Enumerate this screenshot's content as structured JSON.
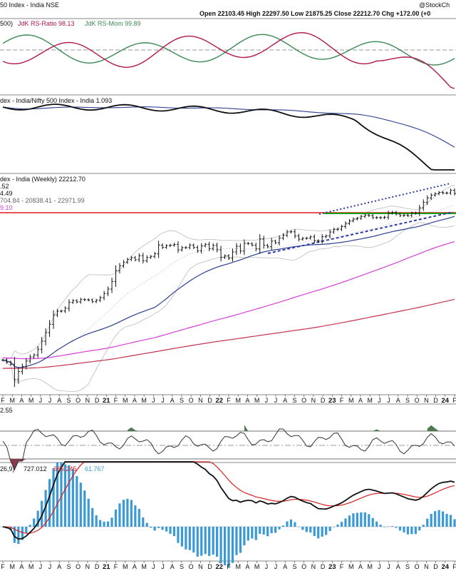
{
  "header": {
    "title": "50 Index - India NSE",
    "brand": "@StockCh",
    "ohlc": "Open 22103.45  High 22297.50  Low 21875.25  Close 22212.70  Chg +172.00 (+0"
  },
  "panels": {
    "rrg": {
      "legend_prefix": "500)",
      "ratio_label": "JdK RS-Ratio 98.13",
      "mom_label": "JdK RS-Mom 99.89"
    },
    "relative": {
      "legend": "dex - India/Nifty 500 Index - India 1.093"
    },
    "price": {
      "legend": "dex - India (Weekly) 22212.70",
      "ma_labels": [
        ".52",
        "4.49",
        "704.84 - 20838.41 - 22971.99",
        "9.10"
      ]
    },
    "oscillator": {
      "legend": "2.55"
    },
    "macd": {
      "legend_prefix": "26,9) ",
      "macd_value": "727.012",
      "signal_value": "665.245",
      "hist_value": "61.767"
    }
  },
  "x_axis": {
    "ticks": [
      {
        "label": "F",
        "bold": false
      },
      {
        "label": "M",
        "bold": false
      },
      {
        "label": "A",
        "bold": false
      },
      {
        "label": "M",
        "bold": false
      },
      {
        "label": "J",
        "bold": false
      },
      {
        "label": "J",
        "bold": false
      },
      {
        "label": "A",
        "bold": false
      },
      {
        "label": "S",
        "bold": false
      },
      {
        "label": "O",
        "bold": false
      },
      {
        "label": "N",
        "bold": false
      },
      {
        "label": "D",
        "bold": false
      },
      {
        "label": "21",
        "bold": true
      },
      {
        "label": "F",
        "bold": false
      },
      {
        "label": "M",
        "bold": false
      },
      {
        "label": "A",
        "bold": false
      },
      {
        "label": "M",
        "bold": false
      },
      {
        "label": "J",
        "bold": false
      },
      {
        "label": "J",
        "bold": false
      },
      {
        "label": "A",
        "bold": false
      },
      {
        "label": "S",
        "bold": false
      },
      {
        "label": "O",
        "bold": false
      },
      {
        "label": "N",
        "bold": false
      },
      {
        "label": "D",
        "bold": false
      },
      {
        "label": "22",
        "bold": true
      },
      {
        "label": "F",
        "bold": false
      },
      {
        "label": "M",
        "bold": false
      },
      {
        "label": "A",
        "bold": false
      },
      {
        "label": "M",
        "bold": false
      },
      {
        "label": "J",
        "bold": false
      },
      {
        "label": "J",
        "bold": false
      },
      {
        "label": "A",
        "bold": false
      },
      {
        "label": "S",
        "bold": false
      },
      {
        "label": "O",
        "bold": false
      },
      {
        "label": "N",
        "bold": false
      },
      {
        "label": "D",
        "bold": false
      },
      {
        "label": "23",
        "bold": true
      },
      {
        "label": "F",
        "bold": false
      },
      {
        "label": "M",
        "bold": false
      },
      {
        "label": "A",
        "bold": false
      },
      {
        "label": "M",
        "bold": false
      },
      {
        "label": "J",
        "bold": false
      },
      {
        "label": "J",
        "bold": false
      },
      {
        "label": "A",
        "bold": false
      },
      {
        "label": "S",
        "bold": false
      },
      {
        "label": "O",
        "bold": false
      },
      {
        "label": "N",
        "bold": false
      },
      {
        "label": "D",
        "bold": false
      },
      {
        "label": "24",
        "bold": true
      },
      {
        "label": "F",
        "bold": false
      }
    ]
  },
  "colors": {
    "ratio": "#b2174a",
    "momentum": "#3a8a52",
    "price": "#111111",
    "ma_blue": "#2a3f8f",
    "ma_magenta": "#d63fd6",
    "ma_red": "#c4334f",
    "bollinger": "#bbbbbb",
    "resistance": "#e01b1b",
    "support": "#14a014",
    "trendline": "#2f3aa6",
    "macd": "#111111",
    "signal": "#d82020",
    "histogram": "#3b9ad4",
    "osc_pos": "#4d7a52",
    "osc_neg": "#8a3a4a"
  },
  "chart_data": {
    "type": "line",
    "series": [
      {
        "name": "Weekly close",
        "values": [
          17050,
          16620,
          16210,
          13050,
          14700,
          15750,
          16850,
          17680,
          18090,
          19250,
          20900,
          22630,
          24330,
          26240,
          26990,
          27010,
          27580,
          28770,
          29140,
          28870,
          29360,
          29310,
          29270,
          28920,
          29200,
          29730,
          30590,
          31490,
          33020,
          35230,
          36230,
          36950,
          37490,
          37880,
          37450,
          38270,
          37260,
          37920,
          38120,
          38670,
          40420,
          39960,
          40310,
          40410,
          40580,
          39450,
          39910,
          39920,
          40410,
          39950,
          39280,
          40260,
          40580,
          39710,
          40380,
          39480,
          37910,
          38240,
          37760,
          39030,
          40190,
          39220,
          40770,
          40720,
          40430,
          39640,
          41650,
          40390,
          40090,
          41250,
          40900,
          41850,
          42440,
          43100,
          43140,
          42300,
          41620,
          41810,
          41830,
          42120,
          41310,
          41230,
          42130,
          42290,
          43090,
          43590,
          43670,
          44190,
          44850,
          45360,
          45740,
          45860,
          46240,
          46530,
          46430,
          46010,
          46020,
          45990,
          46100,
          46930,
          47090,
          46750,
          46430,
          46520,
          46420,
          46900,
          46940,
          48000,
          49110,
          50020,
          50600,
          50880,
          51140,
          51020,
          51020,
          51550,
          50930
        ]
      }
    ]
  }
}
